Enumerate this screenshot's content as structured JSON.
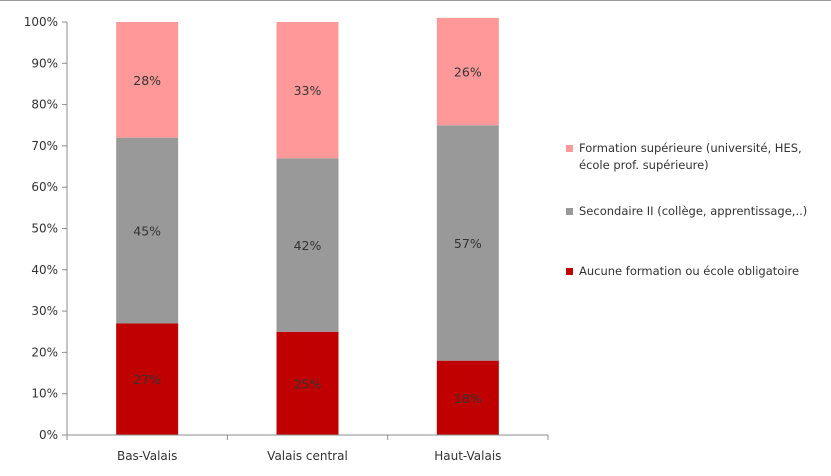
{
  "chart_data": {
    "type": "bar",
    "stacked": true,
    "categories": [
      "Bas-Valais",
      "Valais central",
      "Haut-Valais"
    ],
    "series": [
      {
        "name": "Aucune formation ou école obligatoire",
        "values": [
          27,
          25,
          18
        ],
        "labels": [
          "27%",
          "25%",
          "18%"
        ],
        "color": "#c00000"
      },
      {
        "name": "Secondaire II (collège, apprentissage,..)",
        "values": [
          45,
          42,
          57
        ],
        "labels": [
          "45%",
          "42%",
          "57%"
        ],
        "color": "#999999"
      },
      {
        "name": "Formation supérieure (université, HES, école prof. supérieure)",
        "values": [
          28,
          33,
          26
        ],
        "labels": [
          "28%",
          "33%",
          "26%"
        ],
        "color": "#ff9999"
      }
    ],
    "y_ticks": [
      "0%",
      "10%",
      "20%",
      "30%",
      "40%",
      "50%",
      "60%",
      "70%",
      "80%",
      "90%",
      "100%"
    ],
    "ylim": [
      0,
      100
    ],
    "legend_position": "right",
    "grid": false
  },
  "legend": [
    {
      "label": "Formation supérieure (université, HES, école prof. supérieure)",
      "color": "#ff9999"
    },
    {
      "label": "Secondaire II (collège, apprentissage,..)",
      "color": "#999999"
    },
    {
      "label": "Aucune formation ou école obligatoire",
      "color": "#c00000"
    }
  ]
}
